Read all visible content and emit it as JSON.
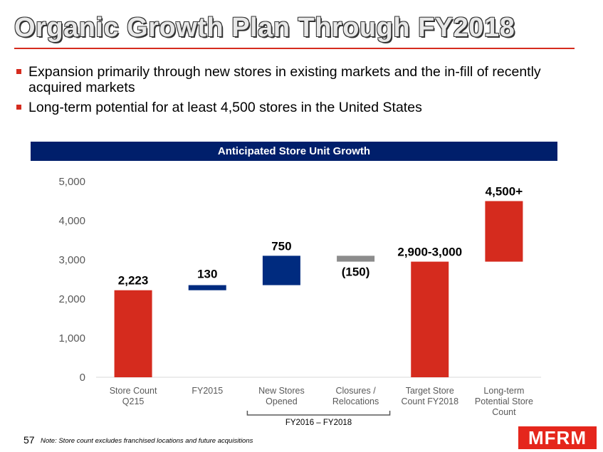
{
  "title": "Organic Growth Plan Through FY2018",
  "bullets": [
    "Expansion primarily through new stores in existing markets and the in-fill of recently acquired markets",
    "Long-term potential for at least 4,500 stores in the United States"
  ],
  "chart_banner": "Anticipated Store Unit Growth",
  "footnote": "Note: Store count excludes franchised locations and future acquisitions",
  "page_number": "57",
  "logo_text": "MFRM",
  "colors": {
    "red": "#d52b1e",
    "navy": "#002b7f",
    "gray": "#8c8c8c",
    "banner": "#001f6b"
  },
  "chart_data": {
    "type": "bar",
    "subtype": "waterfall",
    "ylim": [
      0,
      5000
    ],
    "yticks": [
      "0",
      "1,000",
      "2,000",
      "3,000",
      "4,000",
      "5,000"
    ],
    "ytick_values": [
      0,
      1000,
      2000,
      3000,
      4000,
      5000
    ],
    "categories": [
      [
        "Store Count",
        "Q215"
      ],
      [
        "FY2015"
      ],
      [
        "New Stores",
        "Opened"
      ],
      [
        "Closures /",
        "Relocations"
      ],
      [
        "Target Store",
        "Count FY2018"
      ],
      [
        "Long-term",
        "Potential Store",
        "Count"
      ]
    ],
    "bars": [
      {
        "base": 0,
        "top": 2223,
        "label": "2,223",
        "color": "red"
      },
      {
        "base": 2223,
        "top": 2353,
        "label": "130",
        "color": "navy"
      },
      {
        "base": 2353,
        "top": 3103,
        "label": "750",
        "color": "navy"
      },
      {
        "base": 2953,
        "top": 3103,
        "label": "(150)",
        "color": "gray"
      },
      {
        "base": 0,
        "top": 2953,
        "label": "2,900-3,000",
        "color": "red"
      },
      {
        "base": 2953,
        "top": 4500,
        "label": "4,500+",
        "color": "red"
      }
    ],
    "bracket_label": "FY2016 – FY2018",
    "bracket_span": [
      2,
      3
    ]
  }
}
